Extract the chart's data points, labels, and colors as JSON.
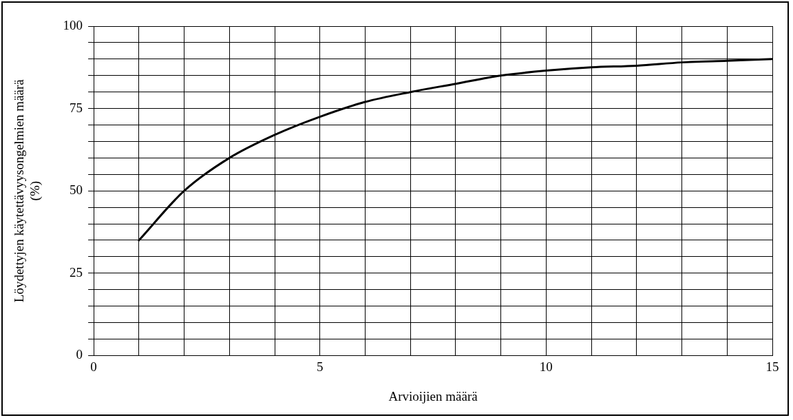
{
  "chart_data": {
    "type": "line",
    "xlabel": "Arvioijien määrä",
    "ylabel": "Löydettyjen käytettävyysongelmien määrä (%)",
    "x": [
      1,
      2,
      3,
      4,
      5,
      6,
      7,
      8,
      9,
      10,
      11,
      12,
      13,
      14,
      15
    ],
    "series": [
      {
        "color": "#000000",
        "values": [
          35,
          50,
          60,
          67,
          72.5,
          77,
          80,
          82.5,
          85,
          86.5,
          87.5,
          88,
          89,
          89.5,
          90
        ]
      }
    ],
    "xlim": [
      0,
      15
    ],
    "xticks": [
      0,
      {
        "value": 1,
        "label": null
      },
      {
        "value": 2,
        "label": null
      },
      {
        "value": 3,
        "label": null
      },
      {
        "value": 4,
        "label": null
      },
      5,
      {
        "value": 6,
        "label": null
      },
      {
        "value": 7,
        "label": null
      },
      {
        "value": 8,
        "label": null
      },
      {
        "value": 9,
        "label": null
      },
      10,
      {
        "value": 11,
        "label": null
      },
      {
        "value": 12,
        "label": null
      },
      {
        "value": 13,
        "label": null
      },
      {
        "value": 14,
        "label": null
      },
      15
    ],
    "ylim": [
      0,
      100
    ],
    "yticks": [
      0,
      {
        "value": 5,
        "label": null
      },
      {
        "value": 10,
        "label": null
      },
      {
        "value": 15,
        "label": null
      },
      {
        "value": 20,
        "label": null
      },
      25,
      {
        "value": 30,
        "label": null
      },
      {
        "value": 35,
        "label": null
      },
      {
        "value": 40,
        "label": null
      },
      {
        "value": 45,
        "label": null
      },
      50,
      {
        "value": 55,
        "label": null
      },
      {
        "value": 60,
        "label": null
      },
      {
        "value": 65,
        "label": null
      },
      {
        "value": 70,
        "label": null
      },
      75,
      {
        "value": 80,
        "label": null
      },
      {
        "value": 85,
        "label": null
      },
      {
        "value": 90,
        "label": null
      },
      {
        "value": 95,
        "label": null
      },
      100
    ],
    "grid": true,
    "legend": false,
    "marker": "none",
    "line_style": "solid"
  }
}
